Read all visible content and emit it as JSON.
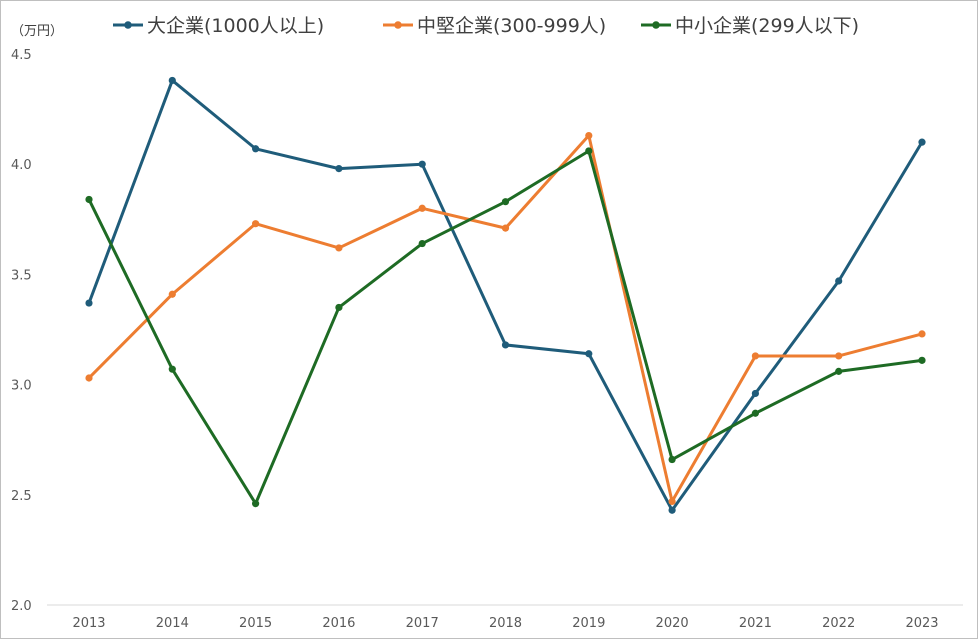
{
  "chart_data": {
    "type": "line",
    "title": "",
    "ylabel": "（万円）",
    "xlabel": "",
    "ylim": [
      2.0,
      4.5
    ],
    "yticks": [
      "2.0",
      "2.5",
      "3.0",
      "3.5",
      "4.0",
      "4.5"
    ],
    "ytick_values": [
      2.0,
      2.5,
      3.0,
      3.5,
      4.0,
      4.5
    ],
    "categories": [
      "2013",
      "2014",
      "2015",
      "2016",
      "2017",
      "2018",
      "2019",
      "2020",
      "2021",
      "2022",
      "2023"
    ],
    "grid": false,
    "legend_position": "top",
    "series": [
      {
        "name": "大企業(1000人以上)",
        "color": "#1f5c7a",
        "values": [
          3.37,
          4.38,
          4.07,
          3.98,
          4.0,
          3.18,
          3.14,
          2.43,
          2.96,
          3.47,
          4.1
        ]
      },
      {
        "name": "中堅企業(300-999人)",
        "color": "#ed7d31",
        "values": [
          3.03,
          3.41,
          3.73,
          3.62,
          3.8,
          3.71,
          4.13,
          2.47,
          3.13,
          3.13,
          3.23
        ]
      },
      {
        "name": "中小企業(299人以下)",
        "color": "#1e6b24",
        "values": [
          3.84,
          3.07,
          2.46,
          3.35,
          3.64,
          3.83,
          4.06,
          2.66,
          2.87,
          3.06,
          3.11
        ]
      }
    ]
  }
}
